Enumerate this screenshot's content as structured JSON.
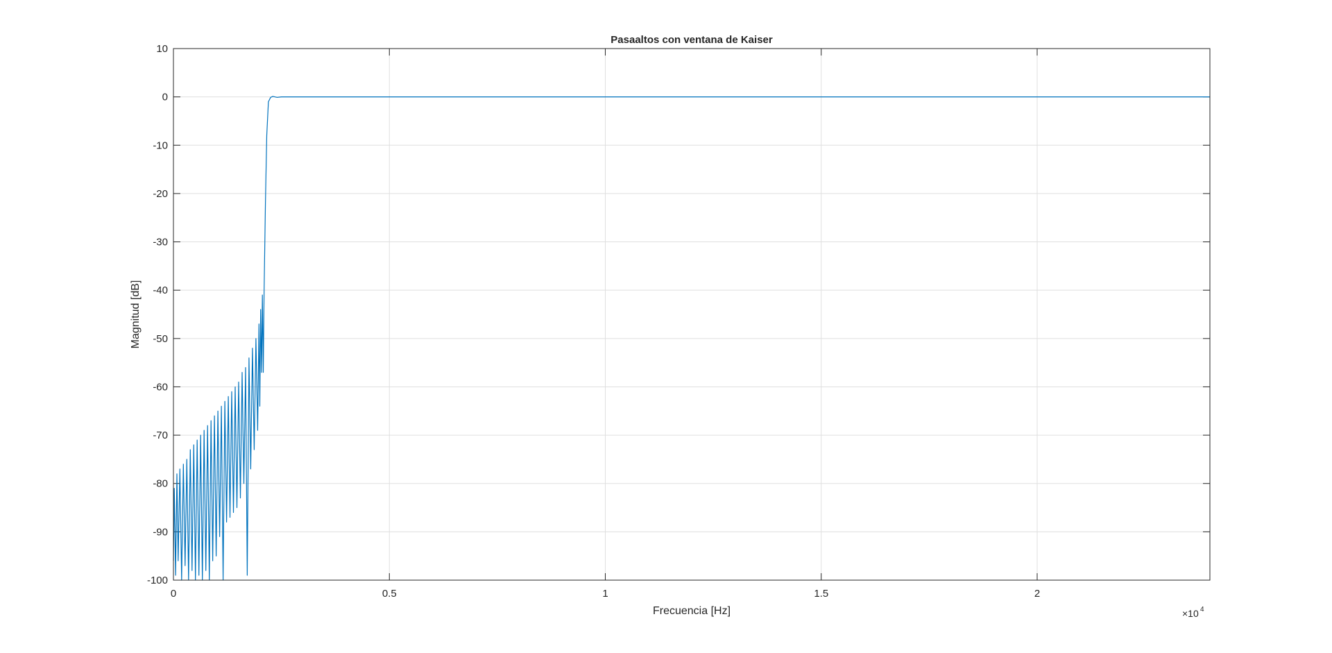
{
  "chart_data": {
    "type": "line",
    "title": "Pasaaltos con ventana de Kaiser",
    "xlabel": "Frecuencia [Hz]",
    "ylabel": "Magnitud [dB]",
    "x_exponent_base": "×10",
    "x_exponent_power": "4",
    "xlim": [
      0,
      24000
    ],
    "ylim": [
      -100,
      10
    ],
    "xticks": [
      0,
      5000,
      10000,
      15000,
      20000
    ],
    "xtick_labels": [
      "0",
      "0.5",
      "1",
      "1.5",
      "2"
    ],
    "yticks": [
      -100,
      -90,
      -80,
      -70,
      -60,
      -50,
      -40,
      -30,
      -20,
      -10,
      0,
      10
    ],
    "ytick_labels": [
      "-100",
      "-90",
      "-80",
      "-70",
      "-60",
      "-50",
      "-40",
      "-30",
      "-20",
      "-10",
      "0",
      "10"
    ],
    "grid": true,
    "line_color": "#0072bd",
    "series": [
      {
        "x": [
          0,
          20,
          50,
          80,
          110,
          150,
          190,
          230,
          270,
          310,
          350,
          390,
          430,
          470,
          510,
          550,
          590,
          630,
          670,
          710,
          750,
          790,
          830,
          870,
          910,
          950,
          990,
          1030,
          1070,
          1110,
          1150,
          1190,
          1230,
          1270,
          1310,
          1350,
          1390,
          1430,
          1470,
          1510,
          1550,
          1590,
          1630,
          1670,
          1710,
          1750,
          1790,
          1830,
          1870,
          1910,
          1950,
          1980,
          2000,
          2020,
          2040,
          2060,
          2080,
          2100,
          2130,
          2160,
          2200,
          2250,
          2300,
          2400,
          2500,
          3000,
          5000,
          10000,
          15000,
          20000,
          24000
        ],
        "y": [
          -96,
          -81,
          -99,
          -78,
          -96,
          -77,
          -100,
          -76,
          -97,
          -75,
          -100,
          -73,
          -98,
          -72,
          -100,
          -71,
          -99,
          -70,
          -100,
          -69,
          -98,
          -68,
          -100,
          -67,
          -96,
          -66,
          -95,
          -65,
          -91,
          -64,
          -100,
          -63,
          -88,
          -62,
          -87,
          -61,
          -86,
          -60,
          -85,
          -59,
          -83,
          -57,
          -80,
          -56,
          -99,
          -54,
          -77,
          -52,
          -73,
          -50,
          -69,
          -47,
          -64,
          -44,
          -57,
          -41,
          -57,
          -40,
          -22,
          -8,
          -1,
          -0.1,
          0.1,
          -0.1,
          0,
          0,
          0,
          0,
          0,
          0,
          0
        ]
      }
    ]
  }
}
